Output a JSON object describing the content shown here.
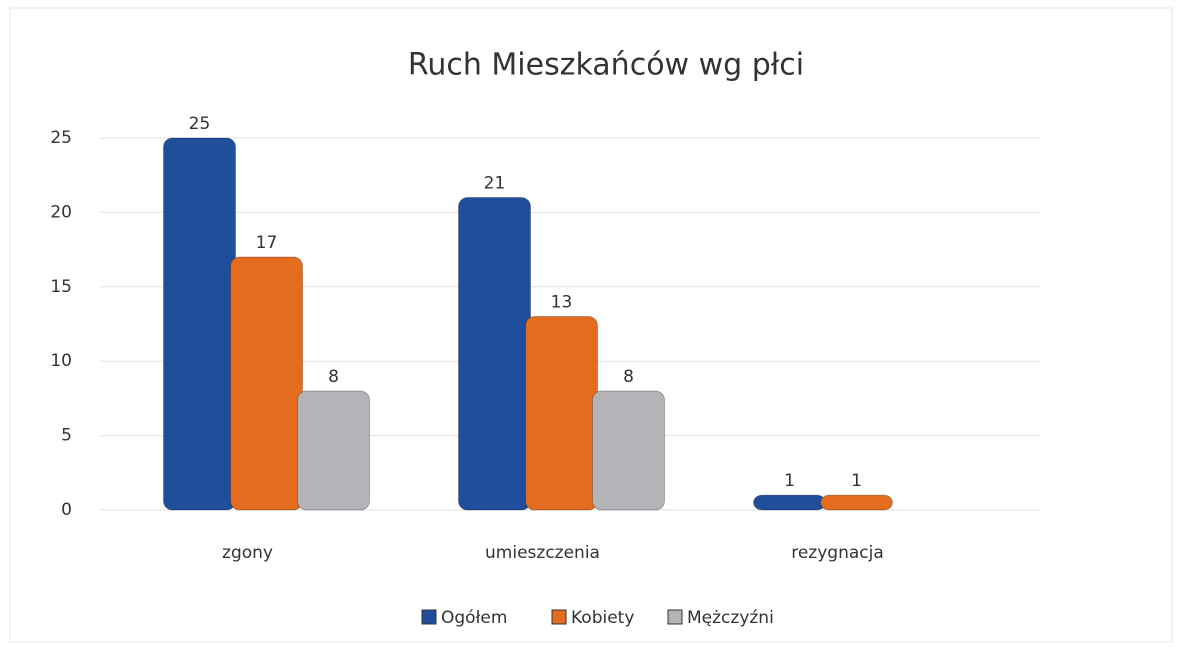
{
  "chart_data": {
    "type": "bar",
    "title": "Ruch Mieszkańców wg płci",
    "categories": [
      "zgony",
      "umieszczenia",
      "rezygnacja"
    ],
    "series": [
      {
        "name": "Ogółem",
        "color": "#1f4e9c",
        "values": [
          25,
          21,
          1
        ]
      },
      {
        "name": "Kobiety",
        "color": "#e46c1f",
        "values": [
          17,
          13,
          1
        ]
      },
      {
        "name": "Mężczyźni",
        "color": "#b3b3b8",
        "values": [
          8,
          8,
          null
        ]
      }
    ],
    "ylim": [
      0,
      25
    ],
    "yticks": [
      0,
      5,
      10,
      15,
      20,
      25
    ],
    "grid": true,
    "legend": "bottom"
  }
}
